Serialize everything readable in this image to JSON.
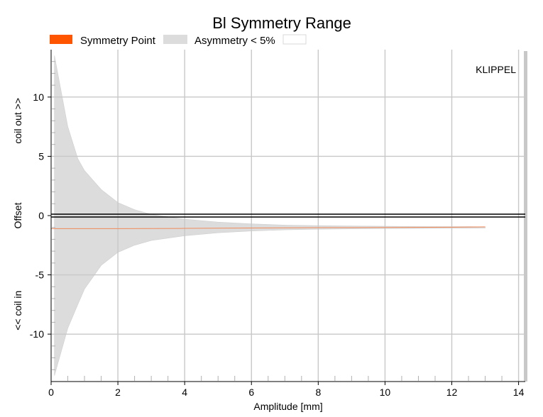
{
  "chart_data": {
    "type": "area",
    "title": "Bl Symmetry Range",
    "xlabel": "Amplitude [mm]",
    "ylabel_parts": [
      "<< coil in",
      "Offset",
      "coil out >>"
    ],
    "xlim": [
      0,
      14.2
    ],
    "ylim": [
      -14,
      14
    ],
    "x_ticks": [
      "0",
      "2",
      "4",
      "6",
      "8",
      "10",
      "12",
      "14"
    ],
    "y_ticks": [
      "10",
      "5",
      "0",
      "-5",
      "-10"
    ],
    "grid": true,
    "legend": [
      {
        "name": "Symmetry Point",
        "color": "#ff5500"
      },
      {
        "name": "Asymmetry < 5%",
        "color": "#dcdcdc"
      },
      {
        "name": "",
        "color": "#ffffff"
      }
    ],
    "annotation": "KLIPPEL",
    "band": {
      "name": "Asymmetry < 5%",
      "x": [
        0.1,
        0.3,
        0.5,
        0.8,
        1.0,
        1.5,
        2.0,
        2.5,
        3.0,
        4.0,
        5.0,
        6.0,
        7.0,
        8.0,
        9.0,
        10.0,
        11.0,
        12.0,
        12.5,
        13.0
      ],
      "upper": [
        13.5,
        10.5,
        7.5,
        4.8,
        3.8,
        2.2,
        1.1,
        0.5,
        0.1,
        -0.3,
        -0.55,
        -0.7,
        -0.8,
        -0.85,
        -0.88,
        -0.9,
        -0.92,
        -0.93,
        -0.93,
        -0.95
      ],
      "lower": [
        -13.5,
        -11.5,
        -9.5,
        -7.5,
        -6.2,
        -4.2,
        -3.1,
        -2.5,
        -2.1,
        -1.7,
        -1.45,
        -1.3,
        -1.2,
        -1.15,
        -1.12,
        -1.1,
        -1.08,
        -1.07,
        -1.07,
        -1.05
      ]
    },
    "symmetry_point": {
      "name": "Symmetry Point",
      "x": [
        0,
        2,
        4,
        6,
        8,
        10,
        12,
        13
      ],
      "y": [
        -1.1,
        -1.1,
        -1.08,
        -1.05,
        -1.02,
        -1.0,
        -0.98,
        -0.95
      ]
    },
    "zero_line": 0
  }
}
